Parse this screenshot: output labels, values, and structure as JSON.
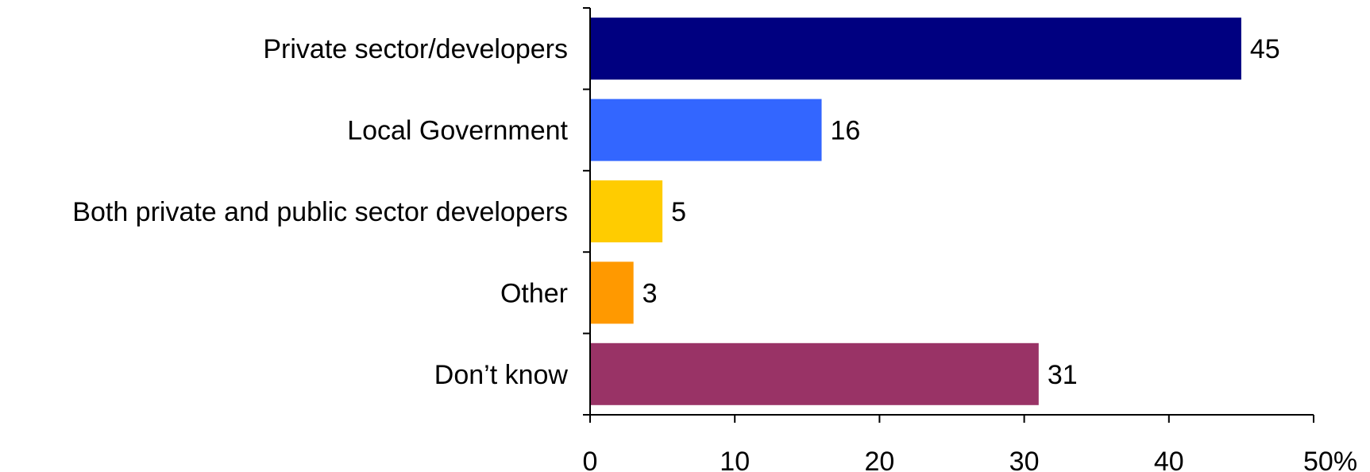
{
  "chart_data": {
    "type": "bar",
    "orientation": "horizontal",
    "categories": [
      "Private sector/developers",
      "Local Government",
      "Both private and public sector developers",
      "Other",
      "Don’t know"
    ],
    "values": [
      45,
      16,
      5,
      3,
      31
    ],
    "colors": [
      "#000080",
      "#3366FF",
      "#FFCC00",
      "#FF9900",
      "#993366"
    ],
    "xlim": [
      0,
      50
    ],
    "x_ticks": [
      0,
      10,
      20,
      30,
      40,
      50
    ],
    "x_tick_labels": [
      "0",
      "10",
      "20",
      "30",
      "40",
      "50%"
    ],
    "data_labels": [
      "45",
      "16",
      "5",
      "3",
      "31"
    ],
    "title": "",
    "xlabel": "",
    "ylabel": "",
    "grid": false,
    "legend": "none"
  }
}
